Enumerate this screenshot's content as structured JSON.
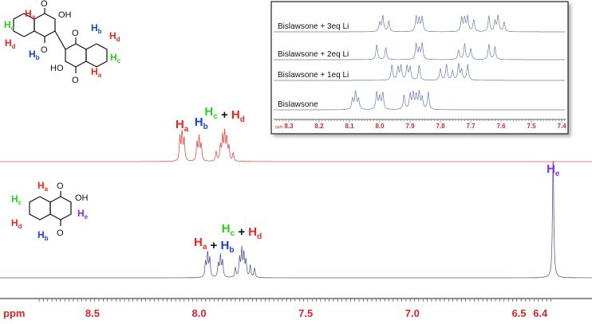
{
  "chart_data": [
    {
      "type": "line",
      "description_role": "upper trace",
      "series": [
        {
          "name": "",
          "color": "#d9534f"
        }
      ],
      "peaks_ppm": [
        8.09,
        8.08,
        8.07,
        8.01,
        8.0,
        7.99,
        7.92,
        7.9,
        7.89,
        7.88,
        7.87,
        7.86,
        7.84
      ],
      "peak_labels": [
        {
          "ppm": 8.08,
          "parts": [
            {
              "t": "H",
              "sub": "a",
              "color": "#e8281f"
            }
          ]
        },
        {
          "ppm": 7.99,
          "parts": [
            {
              "t": "H",
              "sub": "b",
              "color": "#1b3fd0"
            }
          ]
        },
        {
          "ppm": 7.88,
          "parts": [
            {
              "t": "H",
              "sub": "c",
              "color": "#27d11e"
            },
            {
              "t": " + ",
              "color": "#111111"
            },
            {
              "t": "H",
              "sub": "d",
              "color": "#e8281f"
            }
          ]
        }
      ]
    },
    {
      "type": "line",
      "description_role": "lower trace",
      "series": [
        {
          "name": "",
          "color": "#5a5f9a"
        }
      ],
      "peaks_ppm": [
        7.97,
        7.96,
        7.95,
        7.91,
        7.9,
        7.89,
        7.83,
        7.81,
        7.8,
        7.79,
        7.78,
        7.76,
        7.74,
        6.34
      ],
      "peak_labels": [
        {
          "ppm": 7.93,
          "parts": [
            {
              "t": "H",
              "sub": "a",
              "color": "#e8281f"
            },
            {
              "t": " + ",
              "color": "#111111"
            },
            {
              "t": "H",
              "sub": "b",
              "color": "#1b3fd0"
            }
          ]
        },
        {
          "ppm": 7.8,
          "parts": [
            {
              "t": "H",
              "sub": "c",
              "color": "#27d11e"
            },
            {
              "t": " + ",
              "color": "#111111"
            },
            {
              "t": "H",
              "sub": "d",
              "color": "#e8281f"
            }
          ]
        },
        {
          "ppm": 6.34,
          "parts": [
            {
              "t": "H",
              "sub": "e",
              "color": "#8a2be2"
            }
          ]
        }
      ]
    },
    {
      "type": "line",
      "role": "main-axis",
      "xlabel": "ppm",
      "xlim": [
        8.75,
        6.35
      ],
      "x_ticks": [
        "8.5",
        "8.0",
        "7.5",
        "7.0",
        "6.5",
        "6.4"
      ],
      "tick_color": "#d9262c"
    },
    {
      "type": "line",
      "role": "inset",
      "xlabel": "ppm",
      "xlim": [
        8.38,
        7.3
      ],
      "x_ticks": [
        "8.3",
        "8.2",
        "8.1",
        "8.0",
        "7.9",
        "7.8",
        "7.7",
        "7.6",
        "7.5",
        "7.4"
      ],
      "series": [
        {
          "name": "Bislawsone + 3eq Li",
          "color": "#6a7bb0",
          "peaks_ppm": [
            8.0,
            7.99,
            7.97,
            7.88,
            7.87,
            7.86,
            7.73,
            7.72,
            7.71,
            7.69,
            7.64,
            7.62,
            7.61,
            7.59
          ]
        },
        {
          "name": "Bislawsone + 2eq Li",
          "color": "#6a7bb0",
          "peaks_ppm": [
            8.01,
            7.98,
            7.88,
            7.87,
            7.86,
            7.74,
            7.72,
            7.7,
            7.64,
            7.62
          ]
        },
        {
          "name": "Bislawsone + 1eq Li",
          "color": "#6a7bb0",
          "peaks_ppm": [
            7.96,
            7.94,
            7.93,
            7.91,
            7.9,
            7.87,
            7.8,
            7.78,
            7.76,
            7.74,
            7.73,
            7.71
          ]
        },
        {
          "name": "Bislawsone",
          "color": "#6a7bb0",
          "peaks_ppm": [
            8.09,
            8.08,
            8.07,
            8.01,
            8.0,
            7.99,
            7.92,
            7.9,
            7.89,
            7.88,
            7.87,
            7.86,
            7.84
          ]
        }
      ]
    }
  ],
  "structures": {
    "bis": {
      "labels": {
        "ha": "H",
        "hb": "H",
        "hc": "H",
        "hd": "H",
        "ha2": "H",
        "hb2": "H",
        "hc2": "H",
        "hd2": "H"
      },
      "subs": {
        "a": "a",
        "b": "b",
        "c": "c",
        "d": "d"
      },
      "oh": "OH",
      "ho": "HO",
      "o": "O"
    },
    "mono": {
      "labels": {
        "ha": "H",
        "hb": "H",
        "hc": "H",
        "hd": "H",
        "he": "H"
      },
      "subs": {
        "a": "a",
        "b": "b",
        "c": "c",
        "d": "d",
        "e": "e"
      },
      "oh": "OH",
      "o": "O"
    }
  }
}
